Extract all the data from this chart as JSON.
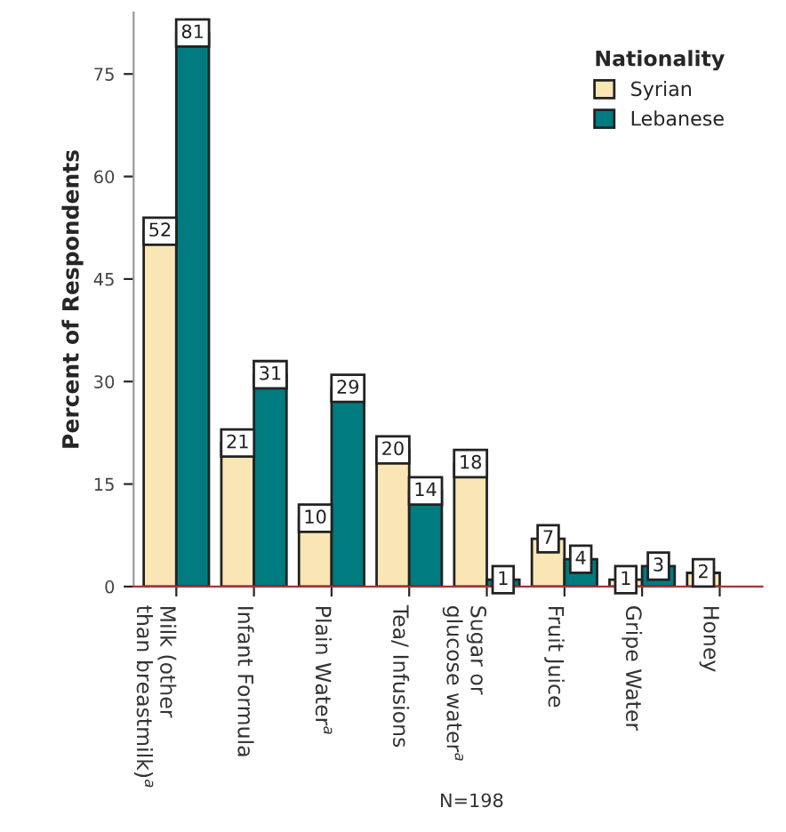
{
  "chart_data": {
    "type": "bar",
    "ylabel": "Percent of Respondents",
    "legend_title": "Nationality",
    "categories": [
      "Milk (other\nthan breastmilk)$^{a}$",
      "Infant Formula",
      "Plain Water$^{a}$",
      "Tea/ Infusions",
      "Sugar or\nglucose water$^{a}$",
      "Fruit Juice",
      "Gripe Water",
      "Honey"
    ],
    "series": [
      {
        "name": "Syrian",
        "color": "#f9e6b4",
        "values": [
          52,
          21,
          10,
          20,
          18,
          7,
          1,
          2
        ],
        "value_labels": [
          "52",
          "21",
          "10",
          "20",
          "18",
          "7",
          "1",
          "2"
        ]
      },
      {
        "name": "Lebanese",
        "color": "#007b7f",
        "values": [
          81,
          31,
          29,
          14,
          1,
          4,
          3,
          0
        ],
        "value_labels": [
          "81",
          "31",
          "29",
          "14",
          "1",
          "4",
          "3",
          null
        ]
      }
    ],
    "ylim": [
      0,
      84
    ],
    "yticks": [
      0,
      15,
      30,
      45,
      60,
      75
    ],
    "grid": false,
    "legend": "top right",
    "annotations": [
      "N=198"
    ]
  }
}
